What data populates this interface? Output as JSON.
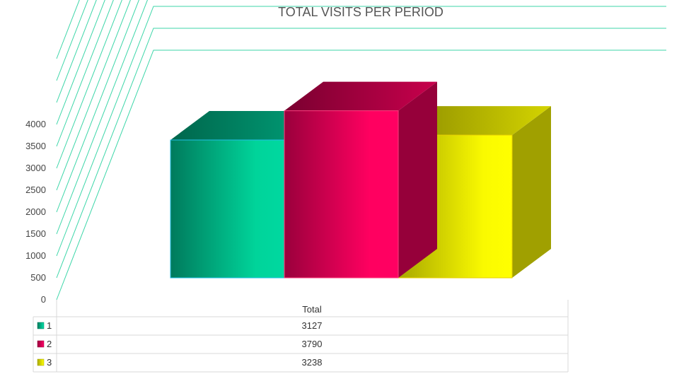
{
  "chart_data": {
    "type": "bar",
    "title": "TOTAL VISITS PER PERIOD",
    "categories": [
      "Total"
    ],
    "series": [
      {
        "name": "1",
        "values": [
          3127
        ]
      },
      {
        "name": "2",
        "values": [
          3790
        ]
      },
      {
        "name": "3",
        "values": [
          3238
        ]
      }
    ],
    "ylim": [
      0,
      4000
    ],
    "y_ticks": [
      "0",
      "500",
      "1000",
      "1500",
      "2000",
      "2500",
      "3000",
      "3500",
      "4000"
    ],
    "xlabel": "",
    "ylabel": "",
    "grid": true,
    "legend": "data-table-left",
    "colors": {
      "gridline": "#3cd6a8",
      "series_front": [
        "#00d49a",
        "#ff0060",
        "#ffff00"
      ],
      "series_dark": [
        "#00785a",
        "#96003a",
        "#a0a000"
      ]
    }
  }
}
